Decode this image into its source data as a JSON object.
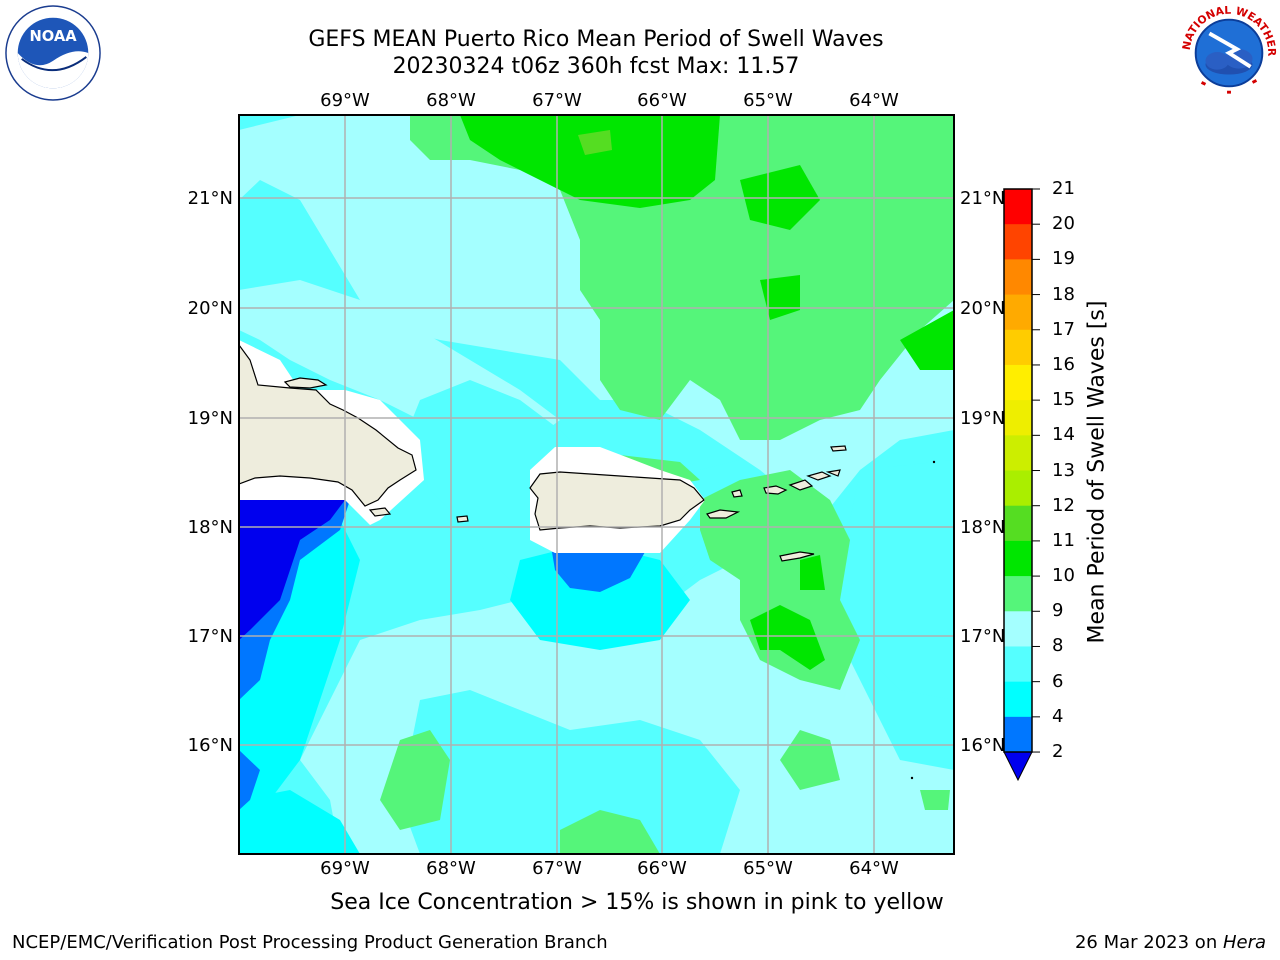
{
  "title": {
    "line1": "GEFS MEAN Puerto Rico Mean Period of Swell Waves",
    "line2": "20230324 t06z 360h fcst   Max: 11.57"
  },
  "axes": {
    "lon_labels": [
      "69°W",
      "68°W",
      "67°W",
      "66°W",
      "65°W",
      "64°W"
    ],
    "lat_labels": [
      "21°N",
      "20°N",
      "19°N",
      "18°N",
      "17°N",
      "16°N"
    ]
  },
  "colorbar": {
    "title": "Mean Period of Swell Waves [s]",
    "ticks": [
      "21",
      "20",
      "19",
      "18",
      "17",
      "16",
      "15",
      "14",
      "13",
      "12",
      "11",
      "10",
      "9",
      "8",
      "6",
      "4",
      "2"
    ],
    "colors": {
      "lt2": "#0000ee",
      "2-4": "#0077ff",
      "4-6": "#00ffff",
      "6-8": "#55ffff",
      "8-9": "#a4ffff",
      "9-10": "#55f57a",
      "10-11": "#00e600",
      "11-12": "#55dd22",
      "12-13": "#aaee00",
      "13-14": "#ccee00",
      "14-15": "#eeee00",
      "15-16": "#ffee00",
      "16-17": "#ffcc00",
      "17-18": "#ffaa00",
      "18-19": "#ff8800",
      "19-20": "#ff4400",
      "20-21": "#ff0000"
    }
  },
  "colors": {
    "land": "#eeeddd",
    "grid": "#b0b0b0"
  },
  "footer": {
    "note": "Sea Ice Concentration > 15% is shown in pink to yellow",
    "credit": "NCEP/EMC/Verification Post Processing Product Generation Branch",
    "date": "26 Mar 2023 on ",
    "machine": "Hera"
  },
  "logos": {
    "noaa": "NOAA",
    "nws": "NATIONAL WEATHER SERVICE"
  }
}
